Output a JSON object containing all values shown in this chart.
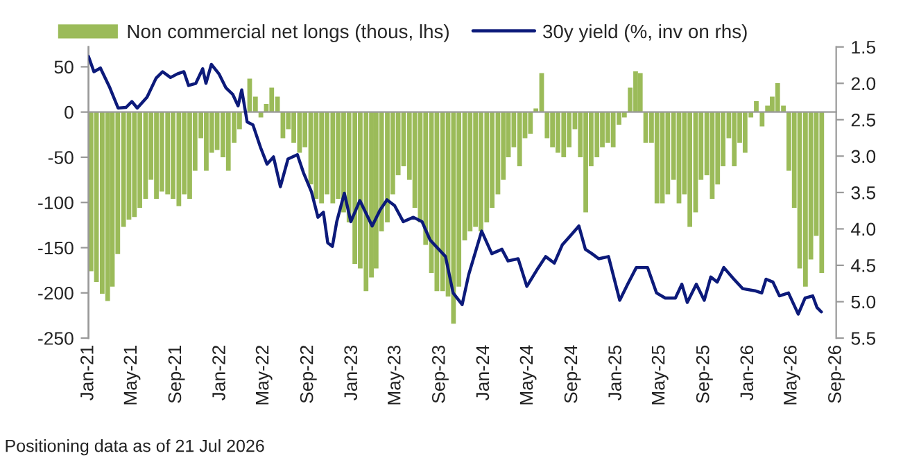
{
  "chart_data": {
    "type": "bar",
    "series": [
      {
        "name": "Non commercial net longs (thous, lhs)",
        "color": "#9bbb59",
        "x": [
          "2021-01-08",
          "2021-01-23",
          "2021-02-08",
          "2021-02-23",
          "2021-03-08",
          "2021-03-23",
          "2021-04-08",
          "2021-04-23",
          "2021-05-08",
          "2021-05-23",
          "2021-06-08",
          "2021-06-23",
          "2021-07-08",
          "2021-07-23",
          "2021-08-08",
          "2021-08-23",
          "2021-09-08",
          "2021-09-23",
          "2021-10-08",
          "2021-10-23",
          "2021-11-08",
          "2021-11-23",
          "2021-12-08",
          "2021-12-23",
          "2022-01-08",
          "2022-01-23",
          "2022-02-08",
          "2022-02-23",
          "2022-03-08",
          "2022-03-23",
          "2022-04-08",
          "2022-04-23",
          "2022-05-08",
          "2022-05-23",
          "2022-06-08",
          "2022-06-23",
          "2022-07-08",
          "2022-07-23",
          "2022-08-08",
          "2022-08-23",
          "2022-09-08",
          "2022-09-23",
          "2022-10-08",
          "2022-10-23",
          "2022-11-08",
          "2022-11-23",
          "2022-12-08",
          "2022-12-23",
          "2023-01-08",
          "2023-01-23",
          "2023-02-08",
          "2023-02-23",
          "2023-03-08",
          "2023-03-23",
          "2023-04-08",
          "2023-04-23",
          "2023-05-08",
          "2023-05-23",
          "2023-06-08",
          "2023-06-23",
          "2023-07-08",
          "2023-07-23",
          "2023-08-08",
          "2023-08-23",
          "2023-09-08",
          "2023-09-23",
          "2023-10-08",
          "2023-10-23",
          "2023-11-08",
          "2023-11-23",
          "2023-12-08",
          "2023-12-23",
          "2024-01-08",
          "2024-01-23",
          "2024-02-08",
          "2024-02-23",
          "2024-03-08",
          "2024-03-23",
          "2024-04-08",
          "2024-04-23",
          "2024-05-08",
          "2024-05-23",
          "2024-06-08",
          "2024-06-23",
          "2024-07-08",
          "2024-07-23",
          "2024-08-08",
          "2024-08-23",
          "2024-09-08",
          "2024-09-23",
          "2024-10-08",
          "2024-10-23",
          "2024-11-08",
          "2024-11-23",
          "2024-12-08",
          "2024-12-23",
          "2025-01-08",
          "2025-01-23",
          "2025-02-08",
          "2025-02-23",
          "2025-03-08",
          "2025-03-23",
          "2025-04-08",
          "2025-04-23",
          "2025-05-08",
          "2025-05-23",
          "2025-06-08",
          "2025-06-23",
          "2025-07-08",
          "2025-07-23",
          "2025-08-08",
          "2025-08-23",
          "2025-09-08",
          "2025-09-23",
          "2025-10-08",
          "2025-10-23",
          "2025-11-08",
          "2025-11-23",
          "2025-12-08",
          "2025-12-23",
          "2026-01-08",
          "2026-01-23",
          "2026-02-08",
          "2026-02-23",
          "2026-03-08",
          "2026-03-23",
          "2026-04-08",
          "2026-04-23",
          "2026-05-08",
          "2026-05-23",
          "2026-06-08",
          "2026-06-23",
          "2026-07-08",
          "2026-07-23"
        ],
        "values": [
          -176,
          -188,
          -201,
          -209,
          -193,
          -157,
          -127,
          -119,
          -116,
          -106,
          -96,
          -75,
          -96,
          -88,
          -91,
          -96,
          -104,
          -91,
          -96,
          -65,
          -29,
          -65,
          -45,
          -42,
          -50,
          -65,
          -34,
          -19,
          null,
          37,
          17,
          -6,
          9,
          27,
          17,
          -29,
          -19,
          -34,
          -45,
          -39,
          -80,
          -96,
          -101,
          -91,
          -101,
          -96,
          -111,
          -122,
          -168,
          -173,
          -198,
          -183,
          -173,
          -132,
          -122,
          -91,
          -70,
          -60,
          -75,
          -106,
          -122,
          -147,
          -178,
          -198,
          -198,
          -204,
          -234,
          -193,
          -142,
          -132,
          -127,
          -132,
          -122,
          -106,
          -91,
          -75,
          -50,
          -39,
          -60,
          -29,
          -24,
          4,
          43,
          -29,
          -39,
          -45,
          -50,
          -39,
          -19,
          -50,
          -111,
          -60,
          -50,
          -39,
          -34,
          -39,
          -14,
          -6,
          27,
          45,
          43,
          -34,
          -34,
          -101,
          -101,
          -91,
          -75,
          -101,
          -91,
          -127,
          -111,
          -75,
          -70,
          -96,
          -80,
          -60,
          -29,
          -60,
          -34,
          -45,
          -6,
          12,
          -16,
          7,
          17,
          32,
          7,
          -65,
          -106,
          -173,
          -193,
          -163,
          -137,
          -178
        ]
      },
      {
        "name": "30y yield (%, inv on rhs)",
        "type": "line",
        "axis": "y2",
        "color": "#0c1a7a",
        "x": [
          "2021-01-01",
          "2021-01-16",
          "2021-02-03",
          "2021-03-01",
          "2021-03-24",
          "2021-04-15",
          "2021-05-01",
          "2021-05-16",
          "2021-06-12",
          "2021-07-07",
          "2021-07-25",
          "2021-08-16",
          "2021-09-04",
          "2021-09-22",
          "2021-10-05",
          "2021-10-25",
          "2021-11-13",
          "2021-11-22",
          "2021-12-07",
          "2021-12-28",
          "2022-01-16",
          "2022-02-04",
          "2022-02-19",
          "2022-03-01",
          "2022-03-16",
          "2022-04-01",
          "2022-04-22",
          "2022-05-10",
          "2022-05-28",
          "2022-06-16",
          "2022-07-07",
          "2022-08-02",
          "2022-08-19",
          "2022-09-10",
          "2022-09-28",
          "2022-10-13",
          "2022-10-25",
          "2022-11-07",
          "2022-11-19",
          "2022-12-10",
          "2022-12-28",
          "2023-01-22",
          "2023-02-25",
          "2023-03-19",
          "2023-04-07",
          "2023-04-28",
          "2023-05-22",
          "2023-06-19",
          "2023-07-13",
          "2023-08-04",
          "2023-08-28",
          "2023-09-16",
          "2023-10-07",
          "2023-11-01",
          "2023-11-19",
          "2023-12-10",
          "2023-12-25",
          "2024-01-22",
          "2024-02-19",
          "2024-03-07",
          "2024-04-04",
          "2024-04-28",
          "2024-05-25",
          "2024-06-19",
          "2024-07-13",
          "2024-08-04",
          "2024-08-22",
          "2024-09-19",
          "2024-10-07",
          "2024-10-25",
          "2024-11-13",
          "2024-12-10",
          "2025-01-10",
          "2025-02-01",
          "2025-02-25",
          "2025-03-28",
          "2025-04-22",
          "2025-05-16",
          "2025-06-13",
          "2025-07-01",
          "2025-07-16",
          "2025-08-10",
          "2025-09-01",
          "2025-09-19",
          "2025-10-07",
          "2025-10-25",
          "2025-11-22",
          "2025-12-16",
          "2026-01-19",
          "2026-02-07",
          "2026-02-19",
          "2026-03-10",
          "2026-03-28",
          "2026-04-22",
          "2026-05-19",
          "2026-06-07",
          "2026-06-28",
          "2026-07-10",
          "2026-07-22"
        ],
        "values": [
          1.63,
          1.84,
          1.79,
          2.06,
          2.34,
          2.33,
          2.25,
          2.34,
          2.19,
          1.93,
          1.84,
          1.92,
          1.87,
          1.84,
          2.03,
          2.0,
          1.8,
          2.0,
          1.74,
          1.87,
          2.06,
          2.15,
          2.31,
          2.09,
          2.53,
          2.57,
          2.88,
          3.11,
          3.01,
          3.42,
          3.04,
          2.98,
          3.23,
          3.49,
          3.84,
          3.77,
          4.19,
          4.24,
          3.9,
          3.51,
          3.9,
          3.61,
          3.96,
          3.74,
          3.6,
          3.68,
          3.9,
          3.84,
          3.9,
          4.15,
          4.28,
          4.38,
          4.88,
          5.04,
          4.63,
          4.28,
          4.03,
          4.34,
          4.28,
          4.44,
          4.41,
          4.79,
          4.57,
          4.38,
          4.47,
          4.22,
          4.12,
          3.96,
          4.28,
          4.34,
          4.41,
          4.38,
          4.98,
          4.76,
          4.53,
          4.53,
          4.88,
          4.95,
          4.95,
          4.76,
          5.01,
          4.76,
          4.98,
          4.66,
          4.73,
          4.53,
          4.69,
          4.82,
          4.85,
          4.88,
          4.69,
          4.73,
          4.92,
          4.88,
          5.17,
          4.95,
          4.92,
          5.08,
          5.14
        ]
      }
    ],
    "xlim": [
      "2021-01-01",
      "2026-09-01"
    ],
    "xticks": [
      {
        "value": "2021-01-01",
        "label": "Jan-21"
      },
      {
        "value": "2021-05-01",
        "label": "May-21"
      },
      {
        "value": "2021-09-01",
        "label": "Sep-21"
      },
      {
        "value": "2022-01-01",
        "label": "Jan-22"
      },
      {
        "value": "2022-05-01",
        "label": "May-22"
      },
      {
        "value": "2022-09-01",
        "label": "Sep-22"
      },
      {
        "value": "2023-01-01",
        "label": "Jan-23"
      },
      {
        "value": "2023-05-01",
        "label": "May-23"
      },
      {
        "value": "2023-09-01",
        "label": "Sep-23"
      },
      {
        "value": "2024-01-01",
        "label": "Jan-24"
      },
      {
        "value": "2024-05-01",
        "label": "May-24"
      },
      {
        "value": "2024-09-01",
        "label": "Sep-24"
      },
      {
        "value": "2025-01-01",
        "label": "Jan-25"
      },
      {
        "value": "2025-05-01",
        "label": "May-25"
      },
      {
        "value": "2025-09-01",
        "label": "Sep-25"
      },
      {
        "value": "2026-01-01",
        "label": "Jan-26"
      },
      {
        "value": "2026-05-01",
        "label": "May-26"
      },
      {
        "value": "2026-09-01",
        "label": "Sep-26"
      }
    ],
    "ylim": [
      -250,
      72
    ],
    "yticks": [
      -250,
      -200,
      -150,
      -100,
      -50,
      0,
      50
    ],
    "y2lim": [
      5.5,
      1.5
    ],
    "y2ticks": [
      {
        "value": 1.5,
        "label": "1.5"
      },
      {
        "value": 2,
        "label": "2.0"
      },
      {
        "value": 2.5,
        "label": "2.5"
      },
      {
        "value": 3,
        "label": "3.0"
      },
      {
        "value": 3.5,
        "label": "3.5"
      },
      {
        "value": 4,
        "label": "4.0"
      },
      {
        "value": 4.5,
        "label": "4.5"
      },
      {
        "value": 5,
        "label": "5.0"
      },
      {
        "value": 5.5,
        "label": "5.5"
      }
    ],
    "legend": "top",
    "annotations": [
      "Positioning data as of 21 Jul 2026"
    ]
  }
}
